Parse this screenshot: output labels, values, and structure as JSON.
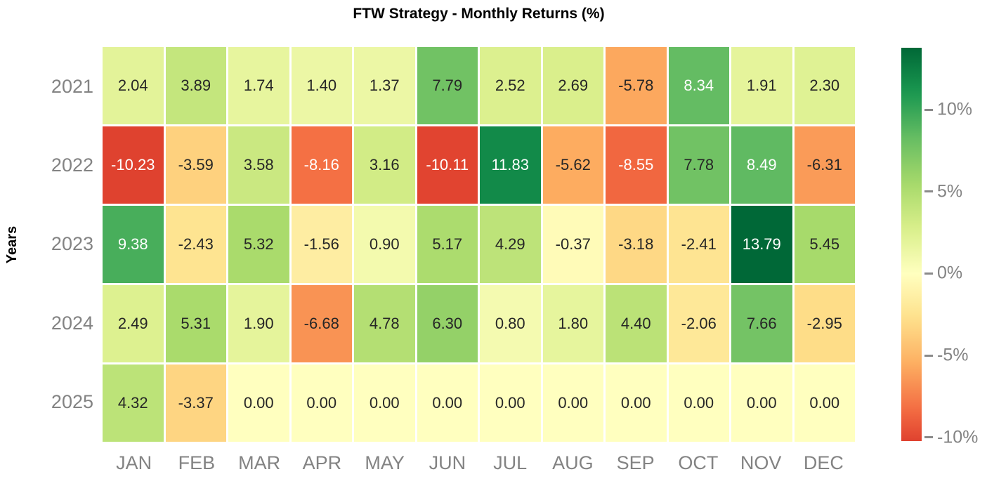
{
  "title": "FTW Strategy - Monthly Returns (%)",
  "chart_data": {
    "type": "heatmap",
    "title": "FTW Strategy - Monthly Returns (%)",
    "xlabel": "",
    "ylabel": "Years",
    "x_categories": [
      "JAN",
      "FEB",
      "MAR",
      "APR",
      "MAY",
      "JUN",
      "JUL",
      "AUG",
      "SEP",
      "OCT",
      "NOV",
      "DEC"
    ],
    "y_categories": [
      "2021",
      "2022",
      "2023",
      "2024",
      "2025"
    ],
    "values": [
      [
        2.04,
        3.89,
        1.74,
        1.4,
        1.37,
        7.79,
        2.52,
        2.69,
        -5.78,
        8.34,
        1.91,
        2.3
      ],
      [
        -10.23,
        -3.59,
        3.58,
        -8.16,
        3.16,
        -10.11,
        11.83,
        -5.62,
        -8.55,
        7.78,
        8.49,
        -6.31
      ],
      [
        9.38,
        -2.43,
        5.32,
        -1.56,
        0.9,
        5.17,
        4.29,
        -0.37,
        -3.18,
        -2.41,
        13.79,
        5.45
      ],
      [
        2.49,
        5.31,
        1.9,
        -6.68,
        4.78,
        6.3,
        0.8,
        1.8,
        4.4,
        -2.06,
        7.66,
        -2.95
      ],
      [
        4.32,
        -3.37,
        0.0,
        0.0,
        0.0,
        0.0,
        0.0,
        0.0,
        0.0,
        0.0,
        0.0,
        0.0
      ]
    ],
    "value_format_decimals": 2,
    "colormap": "RdYlGn",
    "center": 0,
    "vmin": -10.23,
    "vmax": 13.79,
    "grid_gap_color": "#ffffff",
    "legend_position": "right",
    "colorbar_ticks": [
      {
        "value": 10,
        "label": "10%"
      },
      {
        "value": 5,
        "label": "5%"
      },
      {
        "value": 0,
        "label": "0%"
      },
      {
        "value": -5,
        "label": "-5%"
      },
      {
        "value": -10,
        "label": "-10%"
      }
    ]
  },
  "colors": {
    "background": "#ffffff",
    "title_text": "#000000",
    "axis_label_text": "#000000",
    "tick_label_text": "#838383",
    "annot_dark": "#262626",
    "annot_light": "#ffffff"
  }
}
